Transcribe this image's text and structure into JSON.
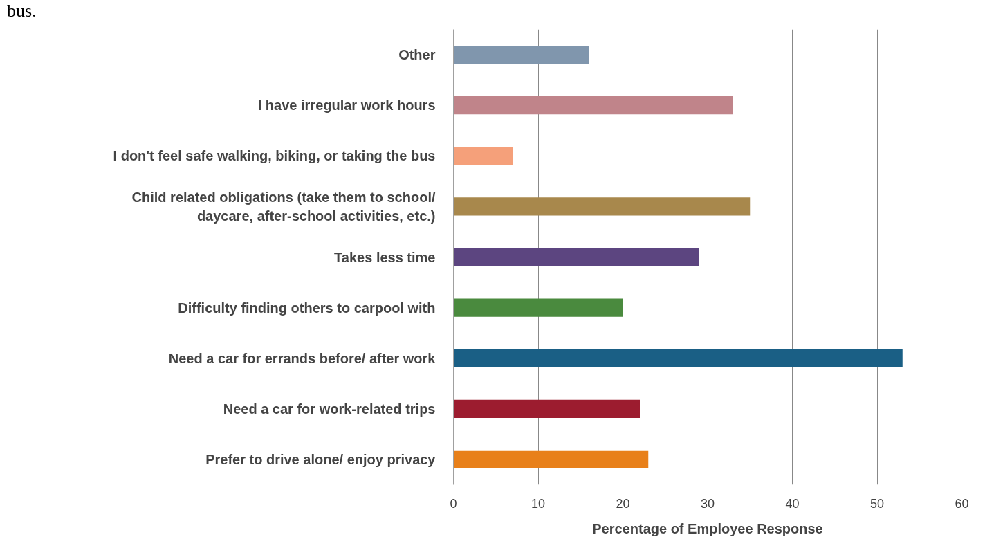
{
  "chart_data": {
    "type": "bar",
    "orientation": "horizontal",
    "categories": [
      "Other",
      "I have irregular work hours",
      "I don't feel safe walking, biking, or taking the bus",
      "Child related obligations (take them to school/\ndaycare, after-school activities, etc.)",
      "Takes less time",
      "Difficulty finding others to carpool with",
      "Need a car for errands before/ after work",
      "Need a car for work-related trips",
      "Prefer to drive alone/ enjoy privacy"
    ],
    "values": [
      16,
      33,
      7,
      35,
      29,
      20,
      53,
      22,
      23
    ],
    "colors": [
      "#8096ad",
      "#c0848a",
      "#f5a07a",
      "#a8884c",
      "#5c4580",
      "#4a8a3e",
      "#1a5f85",
      "#9c1c2f",
      "#e8801a"
    ],
    "xlim": [
      0,
      60
    ],
    "xticks": [
      0,
      10,
      20,
      30,
      40,
      50,
      60
    ],
    "xlabel": "Percentage of Employee Response",
    "grid": "x",
    "annotations": [
      "bus."
    ]
  }
}
